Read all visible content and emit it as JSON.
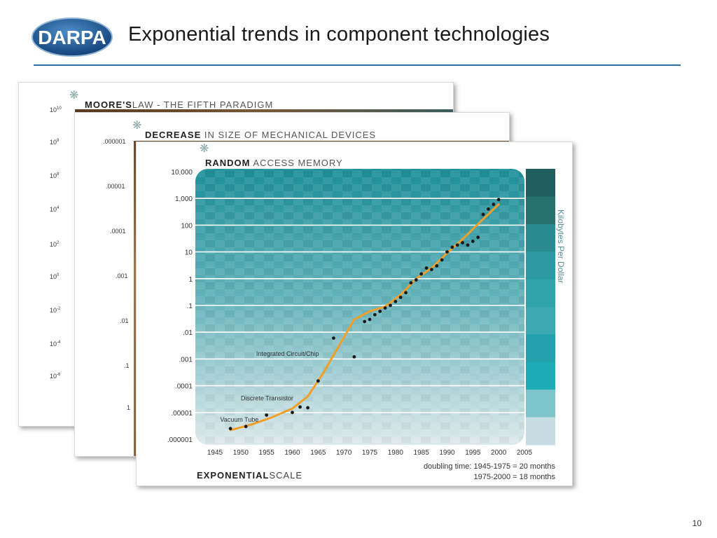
{
  "header": {
    "logo_text": "DARPA",
    "title": "Exponential trends in component technologies"
  },
  "page_number": "10",
  "back_cards": [
    {
      "title_bold": "MOORE'S",
      "title_rest": "LAW - THE FIFTH PARADIGM",
      "y_ticks": [
        "10",
        "9",
        "8",
        "4",
        "2",
        "0",
        "-2",
        "-4",
        "-6"
      ]
    },
    {
      "title_bold": "DECREASE",
      "title_rest": " IN SIZE OF MECHANICAL DEVICES",
      "y_ticks": [
        ".000001",
        ".00001",
        ".0001",
        ".001",
        ".01",
        ".1",
        "1"
      ]
    }
  ],
  "chart_data": {
    "type": "scatter",
    "title": "RANDOM ACCESS MEMORY",
    "title_bold": "RANDOM",
    "title_rest": " ACCESS MEMORY",
    "ylabel": "Kilobytes Per Dollar",
    "y_scale": "log",
    "ylim": [
      1e-06,
      10000
    ],
    "xlim": [
      1945,
      2005
    ],
    "y_tick_labels": [
      "10,000",
      "1,000",
      "100",
      "10",
      "1",
      ".1",
      ".01",
      ".001",
      ".0001",
      ".00001",
      ".000001"
    ],
    "x_tick_labels": [
      "1945",
      "1950",
      "1955",
      "1960",
      "1965",
      "1970",
      "1975",
      "1980",
      "1985",
      "1990",
      "1995",
      "2000",
      "2005"
    ],
    "points": [
      {
        "x": 1948,
        "y": 2.5e-06
      },
      {
        "x": 1951,
        "y": 3e-06
      },
      {
        "x": 1955,
        "y": 8e-06
      },
      {
        "x": 1960,
        "y": 1e-05
      },
      {
        "x": 1961.5,
        "y": 1.6e-05
      },
      {
        "x": 1963,
        "y": 1.5e-05
      },
      {
        "x": 1965,
        "y": 0.00015
      },
      {
        "x": 1968,
        "y": 0.006
      },
      {
        "x": 1972,
        "y": 0.0012
      },
      {
        "x": 1974,
        "y": 0.025
      },
      {
        "x": 1975,
        "y": 0.03
      },
      {
        "x": 1976,
        "y": 0.045
      },
      {
        "x": 1977,
        "y": 0.06
      },
      {
        "x": 1978,
        "y": 0.08
      },
      {
        "x": 1979,
        "y": 0.1
      },
      {
        "x": 1980,
        "y": 0.14
      },
      {
        "x": 1981,
        "y": 0.2
      },
      {
        "x": 1982,
        "y": 0.3
      },
      {
        "x": 1983,
        "y": 0.7
      },
      {
        "x": 1984,
        "y": 0.9
      },
      {
        "x": 1985,
        "y": 1.5
      },
      {
        "x": 1986,
        "y": 2.5
      },
      {
        "x": 1987,
        "y": 2.2
      },
      {
        "x": 1988,
        "y": 3
      },
      {
        "x": 1989,
        "y": 5
      },
      {
        "x": 1990,
        "y": 10
      },
      {
        "x": 1991,
        "y": 15
      },
      {
        "x": 1992,
        "y": 18
      },
      {
        "x": 1993,
        "y": 22
      },
      {
        "x": 1994,
        "y": 18
      },
      {
        "x": 1995,
        "y": 25
      },
      {
        "x": 1996,
        "y": 35
      },
      {
        "x": 1997,
        "y": 250
      },
      {
        "x": 1998,
        "y": 400
      },
      {
        "x": 1999,
        "y": 600
      },
      {
        "x": 2000,
        "y": 900
      }
    ],
    "trend": [
      {
        "x": 1948,
        "y": 2.2e-06
      },
      {
        "x": 1952,
        "y": 3.5e-06
      },
      {
        "x": 1956,
        "y": 6.5e-06
      },
      {
        "x": 1960,
        "y": 1.4e-05
      },
      {
        "x": 1963,
        "y": 4e-05
      },
      {
        "x": 1966,
        "y": 0.0003
      },
      {
        "x": 1969,
        "y": 0.003
      },
      {
        "x": 1972,
        "y": 0.03
      },
      {
        "x": 1975,
        "y": 0.06
      },
      {
        "x": 1978,
        "y": 0.09
      },
      {
        "x": 1981,
        "y": 0.25
      },
      {
        "x": 1984,
        "y": 1.0
      },
      {
        "x": 1987,
        "y": 2.5
      },
      {
        "x": 1990,
        "y": 9
      },
      {
        "x": 1993,
        "y": 30
      },
      {
        "x": 1996,
        "y": 110
      },
      {
        "x": 2000,
        "y": 600
      }
    ],
    "annotations": [
      {
        "label": "Vacuum Tube",
        "x": 1946,
        "y": 4.5e-06
      },
      {
        "label": "Discrete Transistor",
        "x": 1950,
        "y": 2.8e-05
      },
      {
        "label": "Integrated Circuit/Chip",
        "x": 1953,
        "y": 0.0013
      }
    ],
    "colors": {
      "trend": "#f0a02a",
      "points": "#1a1a1a",
      "band_top": "#1f8f99",
      "band_bottom": "#d6e4e6",
      "side_scale": [
        "#1e5e60",
        "#26706f",
        "#2a8a8f",
        "#2c9aa0",
        "#2ea4aa",
        "#3aa9b0",
        "#23a2ad",
        "#1eaab6",
        "#7fc4cb",
        "#c5dde0"
      ]
    },
    "footer_left_bold": "EXPONENTIAL",
    "footer_left_rest": "SCALE",
    "doubling_line1": "doubling time: 1945-1975 = 20 months",
    "doubling_line2": "1975-2000 = 18 months"
  }
}
